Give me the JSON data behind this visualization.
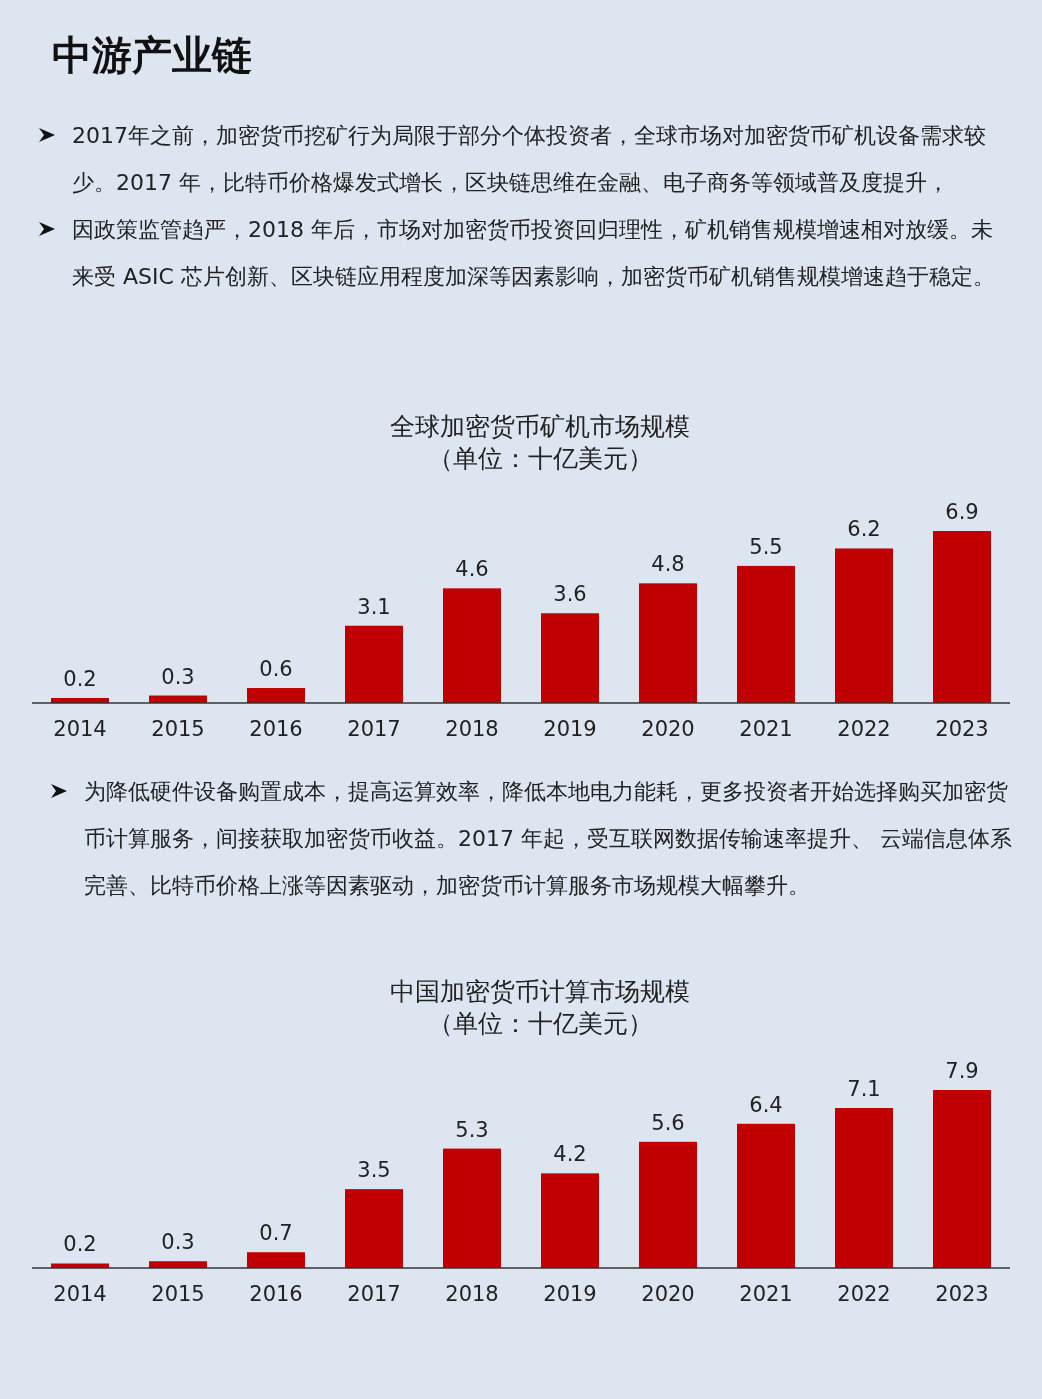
{
  "chart_data": [
    {
      "type": "bar",
      "title": "全球加密货币矿机市场规模",
      "subtitle": "（单位：十亿美元）",
      "annotations": [
        "中游产业链",
        "2017年之前，加密货币挖矿行为局限于部分个体投资者，全球市场对加密货币矿机设备需求较少。2017 年，比特币价格爆发式增长，区块链思维在金融、电子商务等领域普及度提升，",
        "因政策监管趋严，2018 年后，市场对加密货币投资回归理性，矿机销售规模增速相对放缓。未来受 ASIC 芯片创新、区块链应用程度加深等因素影响，加密货币矿机销售规模增速趋于稳定。"
      ],
      "categories": [
        "2014",
        "2015",
        "2016",
        "2017",
        "2018",
        "2019",
        "2020",
        "2021",
        "2022",
        "2023"
      ],
      "values": [
        0.2,
        0.3,
        0.6,
        3.1,
        4.6,
        3.6,
        4.8,
        5.5,
        6.2,
        6.9
      ],
      "color": "#c00000",
      "data_labels": true
    },
    {
      "type": "bar",
      "title": "中国加密货币计算市场规模",
      "subtitle": "（单位：十亿美元）",
      "annotations": [
        "为降低硬件设备购置成本，提高运算效率，降低本地电力能耗，更多投资者开始选择购买加密货币计算服务，间接获取加密货币收益。2017 年起，受互联网数据传输速率提升、 云端信息体系完善、比特币价格上涨等因素驱动，加密货币计算服务市场规模大幅攀升。"
      ],
      "categories": [
        "2014",
        "2015",
        "2016",
        "2017",
        "2018",
        "2019",
        "2020",
        "2021",
        "2022",
        "2023"
      ],
      "values": [
        0.2,
        0.3,
        0.7,
        3.5,
        5.3,
        4.2,
        5.6,
        6.4,
        7.1,
        7.9
      ],
      "color": "#c00000",
      "data_labels": true
    }
  ]
}
